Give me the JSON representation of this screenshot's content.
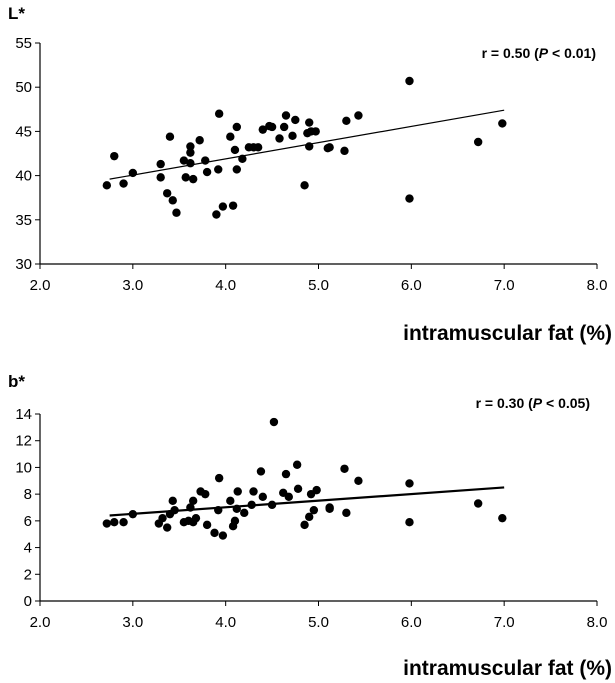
{
  "chart_data": [
    {
      "type": "scatter",
      "ylabel": "L*",
      "xlabel": "intramuscular fat (%)",
      "annotation": {
        "pre": "r = 0.50 (",
        "p": "P",
        "post": " < 0.01)"
      },
      "xlim": [
        2.0,
        8.0
      ],
      "ylim": [
        30,
        55
      ],
      "xticks": [
        "2.0",
        "3.0",
        "4.0",
        "5.0",
        "6.0",
        "7.0",
        "8.0"
      ],
      "yticks": [
        "30",
        "35",
        "40",
        "45",
        "50",
        "55"
      ],
      "trendline": {
        "x": [
          2.75,
          7.0
        ],
        "y": [
          39.6,
          47.4
        ]
      },
      "points": [
        [
          2.72,
          38.9
        ],
        [
          2.8,
          42.2
        ],
        [
          2.9,
          39.1
        ],
        [
          3.0,
          40.3
        ],
        [
          3.3,
          39.8
        ],
        [
          3.3,
          41.3
        ],
        [
          3.37,
          38.0
        ],
        [
          3.4,
          44.4
        ],
        [
          3.43,
          37.2
        ],
        [
          3.47,
          35.8
        ],
        [
          3.55,
          41.7
        ],
        [
          3.57,
          39.8
        ],
        [
          3.62,
          41.4
        ],
        [
          3.62,
          42.6
        ],
        [
          3.62,
          43.3
        ],
        [
          3.65,
          39.6
        ],
        [
          3.72,
          44.0
        ],
        [
          3.78,
          41.7
        ],
        [
          3.8,
          40.4
        ],
        [
          3.9,
          35.6
        ],
        [
          3.92,
          40.7
        ],
        [
          3.93,
          47.0
        ],
        [
          3.97,
          36.5
        ],
        [
          4.05,
          44.4
        ],
        [
          4.08,
          36.6
        ],
        [
          4.1,
          42.9
        ],
        [
          4.12,
          40.7
        ],
        [
          4.12,
          45.5
        ],
        [
          4.18,
          41.9
        ],
        [
          4.25,
          43.2
        ],
        [
          4.3,
          43.2
        ],
        [
          4.35,
          43.2
        ],
        [
          4.4,
          45.2
        ],
        [
          4.47,
          45.6
        ],
        [
          4.5,
          45.5
        ],
        [
          4.58,
          44.2
        ],
        [
          4.63,
          45.5
        ],
        [
          4.65,
          46.8
        ],
        [
          4.72,
          44.5
        ],
        [
          4.75,
          46.3
        ],
        [
          4.85,
          38.9
        ],
        [
          4.88,
          44.8
        ],
        [
          4.9,
          43.3
        ],
        [
          4.9,
          46.0
        ],
        [
          4.92,
          45.0
        ],
        [
          4.97,
          45.0
        ],
        [
          5.1,
          43.1
        ],
        [
          5.12,
          43.2
        ],
        [
          5.28,
          42.8
        ],
        [
          5.3,
          46.2
        ],
        [
          5.43,
          46.8
        ],
        [
          5.98,
          50.7
        ],
        [
          5.98,
          37.4
        ],
        [
          6.72,
          43.8
        ],
        [
          6.98,
          45.9
        ]
      ]
    },
    {
      "type": "scatter",
      "ylabel": "b*",
      "xlabel": "intramuscular fat (%)",
      "annotation": {
        "pre": "r = 0.30 (",
        "p": "P",
        "post": " < 0.05)"
      },
      "xlim": [
        2.0,
        8.0
      ],
      "ylim": [
        0,
        14
      ],
      "xticks": [
        "2.0",
        "3.0",
        "4.0",
        "5.0",
        "6.0",
        "7.0",
        "8.0"
      ],
      "yticks": [
        "0",
        "2",
        "4",
        "6",
        "8",
        "10",
        "12",
        "14"
      ],
      "trendline": {
        "x": [
          2.75,
          7.0
        ],
        "y": [
          6.4,
          8.5
        ]
      },
      "points": [
        [
          2.72,
          5.8
        ],
        [
          2.8,
          5.9
        ],
        [
          2.9,
          5.9
        ],
        [
          3.0,
          6.5
        ],
        [
          3.28,
          5.8
        ],
        [
          3.32,
          6.2
        ],
        [
          3.37,
          5.5
        ],
        [
          3.4,
          6.5
        ],
        [
          3.43,
          7.5
        ],
        [
          3.45,
          6.8
        ],
        [
          3.55,
          5.9
        ],
        [
          3.6,
          6.0
        ],
        [
          3.62,
          7.0
        ],
        [
          3.65,
          5.9
        ],
        [
          3.65,
          7.5
        ],
        [
          3.68,
          6.2
        ],
        [
          3.73,
          8.2
        ],
        [
          3.78,
          8.0
        ],
        [
          3.8,
          5.7
        ],
        [
          3.88,
          5.1
        ],
        [
          3.92,
          6.8
        ],
        [
          3.93,
          9.2
        ],
        [
          3.97,
          4.9
        ],
        [
          4.05,
          7.5
        ],
        [
          4.08,
          5.6
        ],
        [
          4.1,
          6.0
        ],
        [
          4.12,
          6.9
        ],
        [
          4.13,
          8.2
        ],
        [
          4.2,
          6.6
        ],
        [
          4.28,
          7.2
        ],
        [
          4.3,
          8.2
        ],
        [
          4.38,
          9.7
        ],
        [
          4.4,
          7.8
        ],
        [
          4.5,
          7.2
        ],
        [
          4.52,
          13.4
        ],
        [
          4.62,
          8.1
        ],
        [
          4.65,
          9.5
        ],
        [
          4.68,
          7.8
        ],
        [
          4.77,
          10.2
        ],
        [
          4.78,
          8.4
        ],
        [
          4.85,
          5.7
        ],
        [
          4.9,
          6.3
        ],
        [
          4.92,
          8.0
        ],
        [
          4.95,
          6.8
        ],
        [
          4.98,
          8.3
        ],
        [
          5.12,
          6.9
        ],
        [
          5.12,
          7.0
        ],
        [
          5.28,
          9.9
        ],
        [
          5.3,
          6.6
        ],
        [
          5.43,
          9.0
        ],
        [
          5.98,
          8.8
        ],
        [
          5.98,
          5.9
        ],
        [
          6.72,
          7.3
        ],
        [
          6.98,
          6.2
        ]
      ]
    }
  ]
}
